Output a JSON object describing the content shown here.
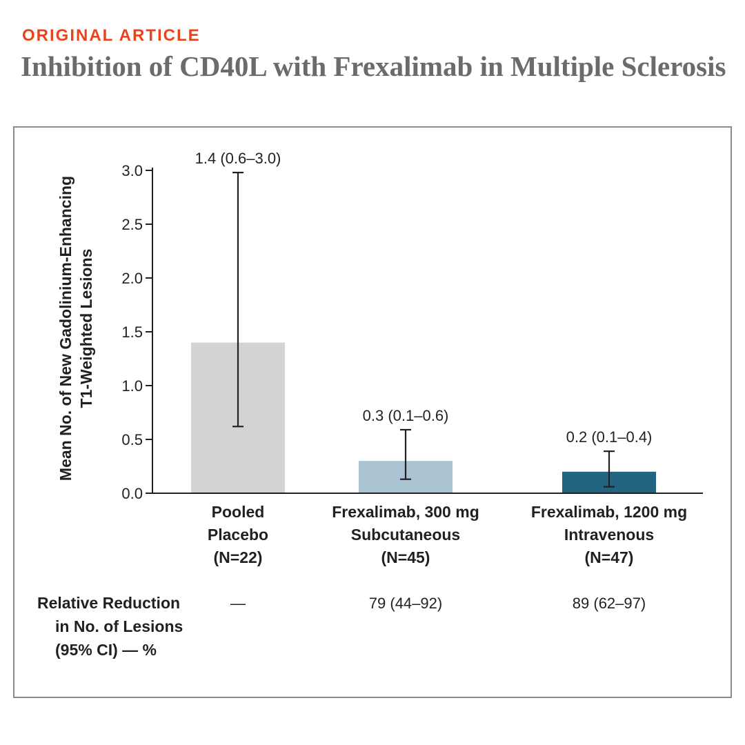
{
  "header": {
    "kicker": "ORIGINAL ARTICLE",
    "title": "Inhibition of CD40L with Frexalimab in Multiple Sclerosis"
  },
  "colors": {
    "kicker": "#e8441c",
    "title": "#6b6b6b",
    "frame": "#8a8a8a",
    "bars": [
      "#d1d3d4",
      "#a9c3d3",
      "#236580"
    ]
  },
  "chart_data": {
    "type": "bar",
    "ylabel_lines": [
      "Mean No. of New Gadolinium-Enhancing",
      "T1-Weighted Lesions"
    ],
    "ylim": [
      0,
      3.0
    ],
    "yticks": [
      "0.0",
      "0.5",
      "1.0",
      "1.5",
      "2.0",
      "2.5",
      "3.0"
    ],
    "ytick_values": [
      0,
      0.5,
      1.0,
      1.5,
      2.0,
      2.5,
      3.0
    ],
    "grid": false,
    "categories": [
      [
        "Pooled",
        "Placebo",
        "(N=22)"
      ],
      [
        "Frexalimab, 300 mg",
        "Subcutaneous",
        "(N=45)"
      ],
      [
        "Frexalimab, 1200 mg",
        "Intravenous",
        "(N=47)"
      ]
    ],
    "values": [
      1.4,
      0.3,
      0.2
    ],
    "ci_low": [
      0.62,
      0.13,
      0.06
    ],
    "ci_high": [
      2.98,
      0.59,
      0.39
    ],
    "data_labels": [
      "1.4 (0.6–3.0)",
      "0.3 (0.1–0.6)",
      "0.2 (0.1–0.4)"
    ]
  },
  "table": {
    "header_lines": [
      "Relative Reduction",
      "in No. of Lesions",
      "(95% CI) — %"
    ],
    "values": [
      "—",
      "79 (44–92)",
      "89 (62–97)"
    ]
  }
}
